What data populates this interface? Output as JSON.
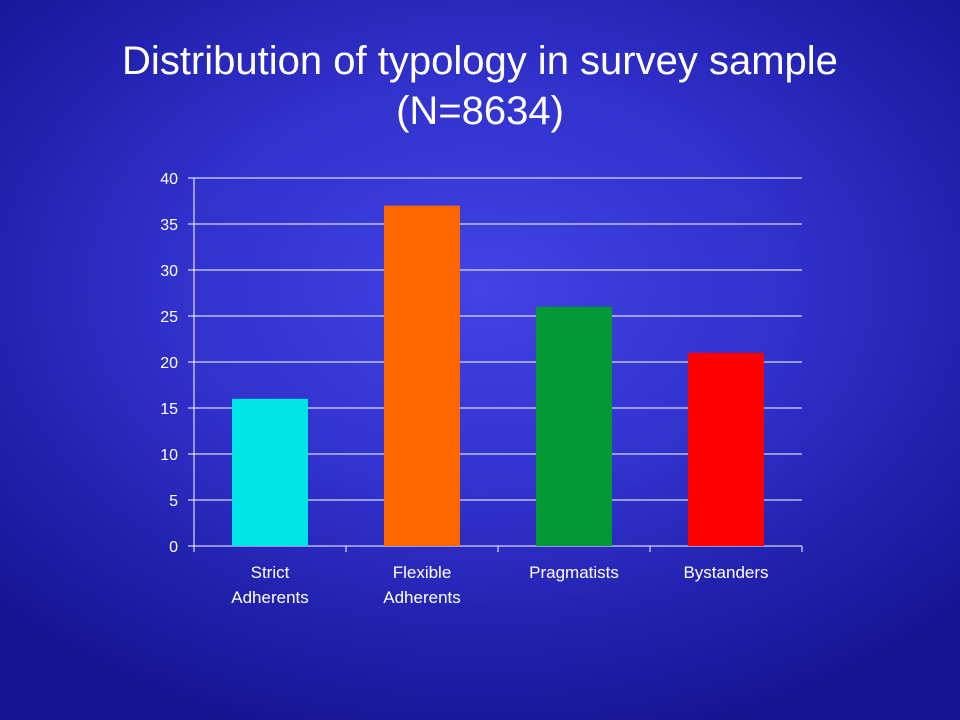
{
  "slide": {
    "title_line1": "Distribution of typology in survey sample",
    "title_line2": "(N=8634)"
  },
  "chart_data": {
    "type": "bar",
    "categories": [
      "Strict Adherents",
      "Flexible Adherents",
      "Pragmatists",
      "Bystanders"
    ],
    "category_label_lines": [
      [
        "Strict",
        "Adherents"
      ],
      [
        "Flexible",
        "Adherents"
      ],
      [
        "Pragmatists"
      ],
      [
        "Bystanders"
      ]
    ],
    "values": [
      16,
      37,
      26,
      21
    ],
    "bar_colors": [
      "#00e5e5",
      "#ff6600",
      "#009933",
      "#ff0000"
    ],
    "ylim": [
      0,
      40
    ],
    "yticks": [
      0,
      5,
      10,
      15,
      20,
      25,
      30,
      35,
      40
    ],
    "grid": true,
    "legend": false,
    "title": "Distribution of typology in survey sample (N=8634)",
    "xlabel": "",
    "ylabel": ""
  }
}
